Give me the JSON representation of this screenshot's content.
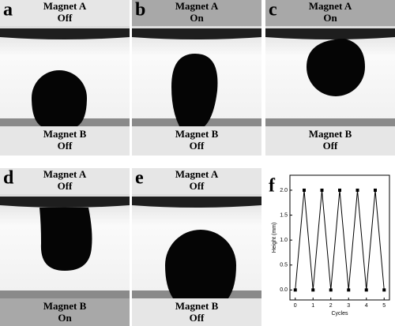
{
  "panels": [
    {
      "letter": "a",
      "top": {
        "name": "Magnet A",
        "state": "Off"
      },
      "bottom": {
        "name": "Magnet B",
        "state": "Off"
      }
    },
    {
      "letter": "b",
      "top": {
        "name": "Magnet A",
        "state": "On"
      },
      "bottom": {
        "name": "Magnet B",
        "state": "Off"
      }
    },
    {
      "letter": "c",
      "top": {
        "name": "Magnet A",
        "state": "On"
      },
      "bottom": {
        "name": "Magnet B",
        "state": "Off"
      }
    },
    {
      "letter": "d",
      "top": {
        "name": "Magnet A",
        "state": "Off"
      },
      "bottom": {
        "name": "Magnet B",
        "state": "On"
      }
    },
    {
      "letter": "e",
      "top": {
        "name": "Magnet A",
        "state": "Off"
      },
      "bottom": {
        "name": "Magnet B",
        "state": "Off"
      }
    }
  ],
  "chart_letter": "f",
  "chart_data": {
    "type": "line",
    "x_label": "Cycles",
    "y_label": "Height (mm)",
    "x": [
      0,
      0.5,
      1,
      1.5,
      2,
      2.5,
      3,
      3.5,
      4,
      4.5,
      5
    ],
    "series": [
      {
        "name": "Height",
        "color": "#000000",
        "values": [
          0,
          2,
          0,
          2,
          0,
          2,
          0,
          2,
          0,
          2,
          0
        ]
      }
    ],
    "xlim": [
      -0.3,
      5.3
    ],
    "ylim": [
      -0.2,
      2.3
    ],
    "xticks": [
      0,
      1,
      2,
      3,
      4,
      5
    ],
    "yticks": [
      {
        "value": 0,
        "label": "0.0"
      },
      0.5,
      {
        "value": 1,
        "label": "1.0"
      },
      1.5,
      {
        "value": 2,
        "label": "2.0"
      }
    ]
  }
}
